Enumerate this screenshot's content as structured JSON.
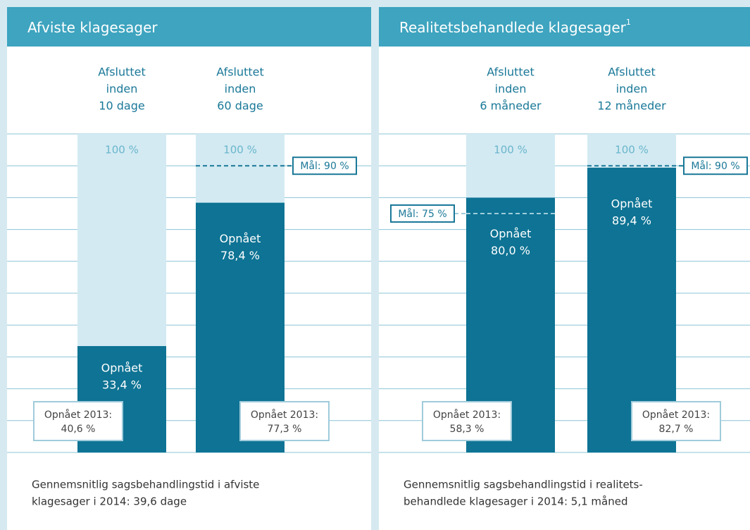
{
  "chart_data": [
    {
      "type": "progress-bar",
      "title": "Afviste klagesager",
      "categories": [
        [
          "Afsluttet",
          "inden",
          "10 dage"
        ],
        [
          "Afsluttet",
          "inden",
          "60 dage"
        ]
      ],
      "values": [
        33.4,
        78.4
      ],
      "value_caption": "Opnået",
      "value_labels": [
        "33,4 %",
        "78,4 %"
      ],
      "max_value": 100,
      "max_label": "100 %",
      "goals": [
        null,
        90
      ],
      "goal_labels": [
        null,
        "Mål: 90 %"
      ],
      "previous": [
        40.6,
        77.3
      ],
      "previous_caption": "Opnået 2013:",
      "previous_labels": [
        "40,6 %",
        "77,3 %"
      ],
      "footnote": [
        "Gennemsnitlig sagsbehandlingstid i afviste",
        "klagesager i 2014: 39,6 dage"
      ],
      "ylim": [
        0,
        100
      ],
      "yticks": [
        0,
        10,
        20,
        30,
        40,
        50,
        60,
        70,
        80,
        90,
        100
      ],
      "grid": true,
      "color": "#0e7394",
      "track_color": "#d3eaf2"
    },
    {
      "type": "progress-bar",
      "title": "Realitetsbehandlede klagesager",
      "title_note": "1",
      "categories": [
        [
          "Afsluttet",
          "inden",
          "6 måneder"
        ],
        [
          "Afsluttet",
          "inden",
          "12 måneder"
        ]
      ],
      "values": [
        80.0,
        89.4
      ],
      "value_caption": "Opnået",
      "value_labels": [
        "80,0 %",
        "89,4 %"
      ],
      "max_value": 100,
      "max_label": "100 %",
      "goals": [
        75,
        90
      ],
      "goal_labels": [
        "Mål: 75 %",
        "Mål: 90 %"
      ],
      "previous": [
        58.3,
        82.7
      ],
      "previous_caption": "Opnået 2013:",
      "previous_labels": [
        "58,3 %",
        "82,7 %"
      ],
      "footnote": [
        "Gennemsnitlig sagsbehandlingstid i realitets-",
        "behandlede klagesager i 2014: 5,1 måned"
      ],
      "ylim": [
        0,
        100
      ],
      "yticks": [
        0,
        10,
        20,
        30,
        40,
        50,
        60,
        70,
        80,
        90,
        100
      ],
      "grid": true,
      "color": "#0e7394",
      "track_color": "#d3eaf2"
    }
  ]
}
